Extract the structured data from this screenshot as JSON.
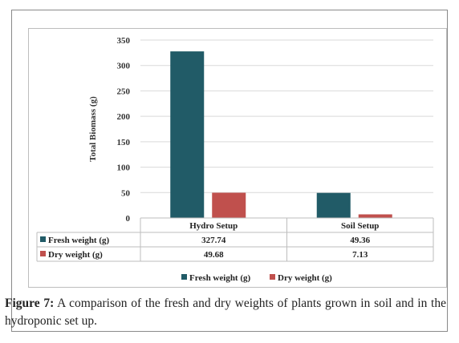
{
  "chart_data": {
    "type": "bar",
    "categories": [
      "Hydro Setup",
      "Soil Setup"
    ],
    "series": [
      {
        "name": "Fresh weight (g)",
        "values": [
          327.74,
          49.36
        ],
        "labels": [
          "327.74",
          "49.36"
        ],
        "color": "#215b67"
      },
      {
        "name": "Dry weight (g)",
        "values": [
          49.68,
          7.13
        ],
        "labels": [
          "49.68",
          "7.13"
        ],
        "color": "#c0504d"
      }
    ],
    "ylabel": "Total Biomass (g)",
    "ylim": [
      0,
      350
    ],
    "yticks": [
      "0",
      "50",
      "100",
      "150",
      "200",
      "250",
      "300",
      "350"
    ],
    "grid": true,
    "legend": "bottom",
    "data_table": true
  },
  "caption": {
    "label": "Figure 7:",
    "text": " A comparison of the fresh and dry weights of plants  grown in soil and in the hydroponic set up."
  }
}
